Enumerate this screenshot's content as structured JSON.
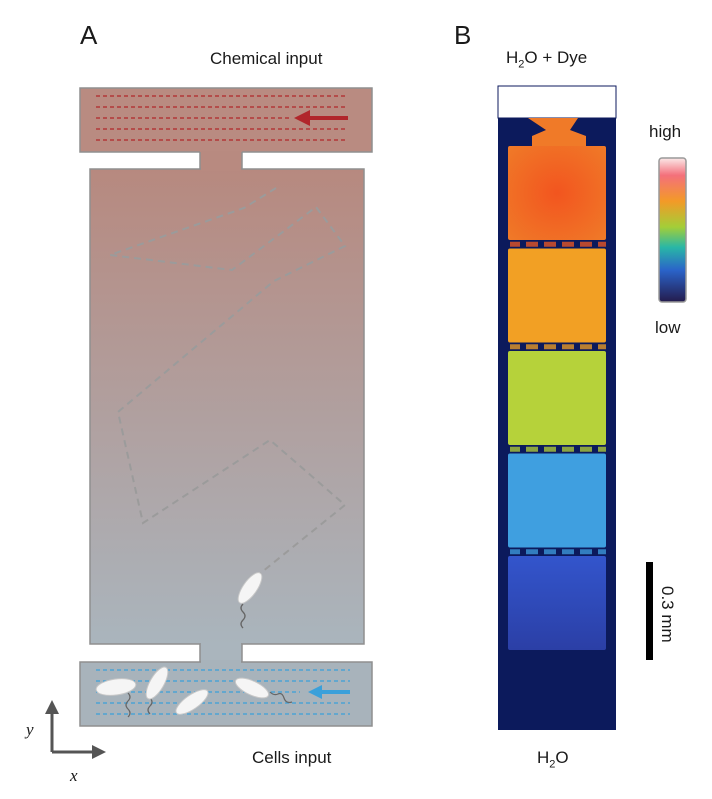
{
  "panel_a": {
    "letter": "A",
    "top_label": "Chemical input",
    "bottom_label": "Cells input",
    "axis_y": "y",
    "axis_x": "x",
    "colors": {
      "chemical_arrow": "#b1262b",
      "cells_arrow": "#3aa0da",
      "top_channel": "#b88a80",
      "bottom_channel": "#a8b3bb"
    }
  },
  "panel_b": {
    "letter": "B",
    "top_label_base": "H",
    "top_label_sub": "2",
    "top_label_rest": "O + Dye",
    "bottom_label_base": "H",
    "bottom_label_sub": "2",
    "bottom_label_rest": "O",
    "colorbar_high": "high",
    "colorbar_low": "low",
    "scale_bar": "0.3 mm",
    "chamber_colors": [
      "#f25a22",
      "#f2a024",
      "#b6d23a",
      "#3f9fe0",
      "#2f4fc8"
    ]
  }
}
